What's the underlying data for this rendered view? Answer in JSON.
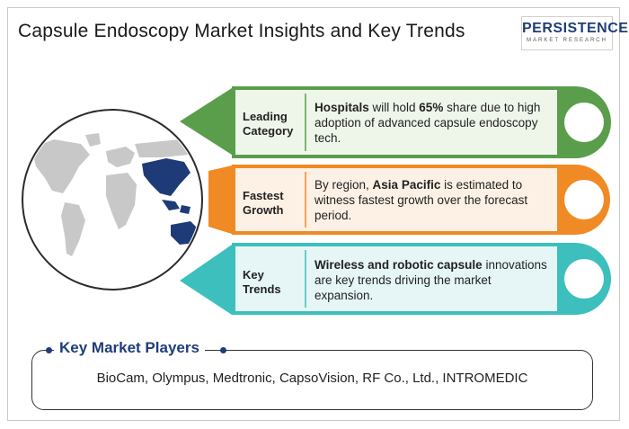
{
  "title": "Capsule Endoscopy Market Insights and Key Trends",
  "logo": {
    "main": "PERSISTENCE",
    "sub": "MARKET RESEARCH"
  },
  "rows": [
    {
      "category_line1": "Leading",
      "category_line2": "Category",
      "desc_bold": "Hospitals",
      "desc_part1": " will hold ",
      "desc_bold2": "65%",
      "desc_part2": " share due to high adoption of advanced capsule endoscopy tech.",
      "color": "#5a9e4b",
      "panel": "#eef6ea"
    },
    {
      "category_line1": "Fastest",
      "category_line2": "Growth",
      "desc_pre": "By region, ",
      "desc_bold": "Asia Pacific",
      "desc_part1": " is estimated to witness fastest growth over the forecast period.",
      "color": "#f08a24",
      "panel": "#fdf1e5"
    },
    {
      "category_line1": "Key",
      "category_line2": "Trends",
      "desc_bold": "Wireless and robotic capsule",
      "desc_part1": " innovations are key trends driving the market expansion.",
      "color": "#3dbfbd",
      "panel": "#e6f6f6"
    }
  ],
  "players": {
    "title": "Key Market Players",
    "list": "BioCam, Olympus, Medtronic, CapsoVision, RF Co., Ltd., INTROMEDIC"
  },
  "colors": {
    "brand": "#1f3e78",
    "map_land": "#c8c8c8",
    "map_highlight": "#1e3b78"
  }
}
